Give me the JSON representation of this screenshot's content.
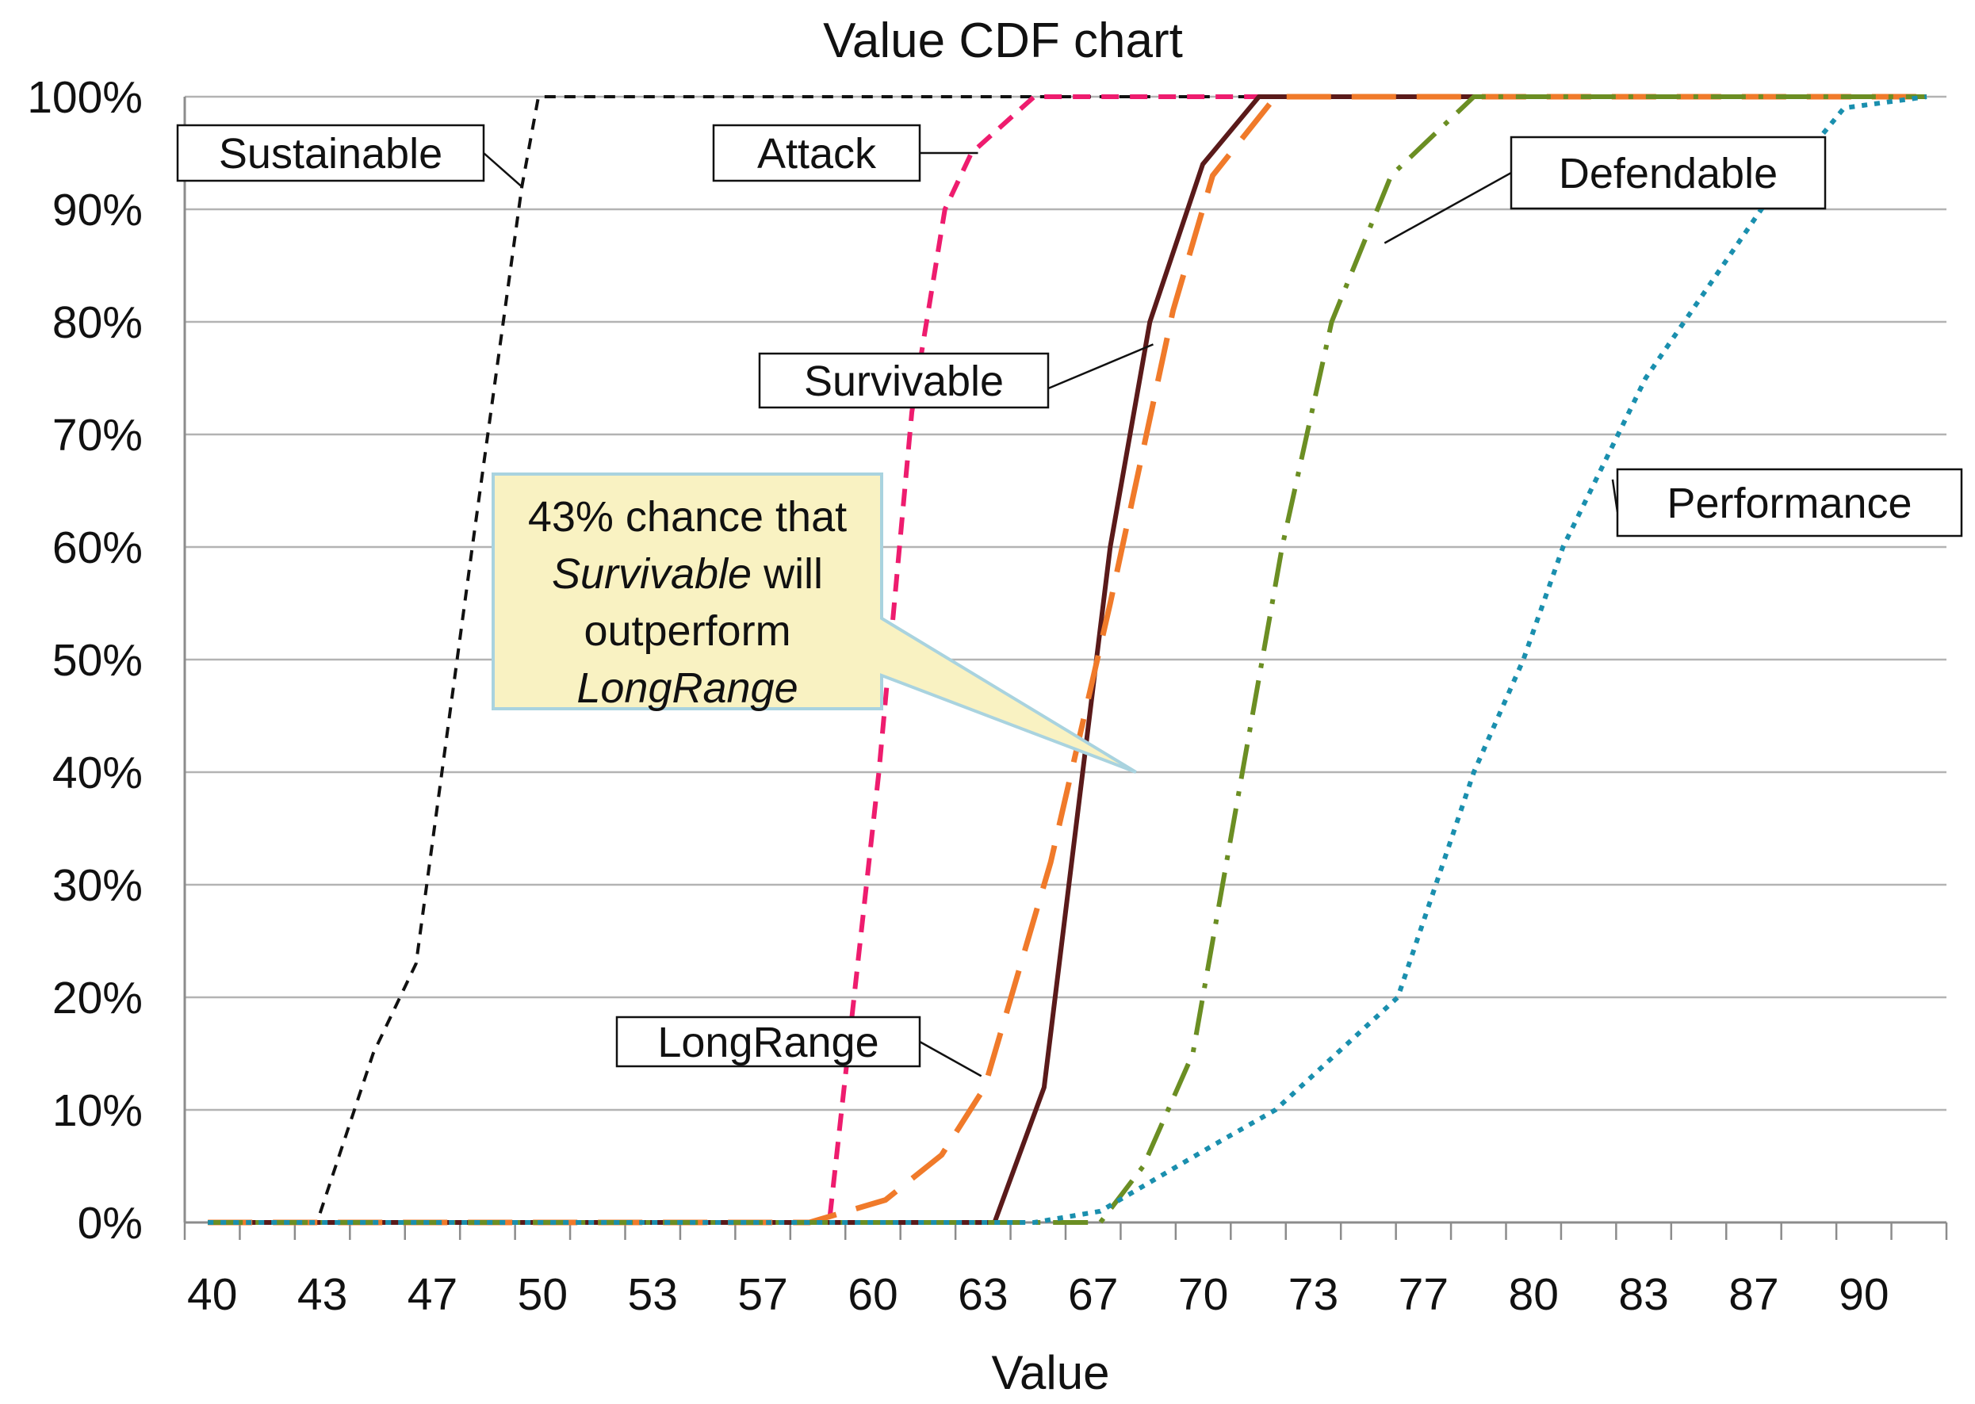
{
  "chart_data": {
    "type": "line",
    "title": "Value CDF chart",
    "xlabel": "Value",
    "ylabel": "",
    "x_tick_labels": [
      "40",
      "43",
      "47",
      "50",
      "53",
      "57",
      "60",
      "63",
      "67",
      "70",
      "73",
      "77",
      "80",
      "83",
      "87",
      "90"
    ],
    "y_tick_labels": [
      "0%",
      "10%",
      "20%",
      "30%",
      "40%",
      "50%",
      "60%",
      "70%",
      "80%",
      "90%",
      "100%"
    ],
    "xlim": [
      39.3,
      92.6
    ],
    "ylim": [
      0,
      100
    ],
    "grid": "horizontal",
    "series": [
      {
        "name": "Sustainable",
        "color": "#111111",
        "style": "dashed-short",
        "points": [
          [
            40,
            0
          ],
          [
            43.3,
            0
          ],
          [
            45,
            15
          ],
          [
            46.3,
            23
          ],
          [
            48,
            60
          ],
          [
            49.5,
            92
          ],
          [
            50,
            100
          ],
          [
            92,
            100
          ]
        ]
      },
      {
        "name": "Attack",
        "color": "#ee1c6e",
        "style": "dashed",
        "points": [
          [
            40,
            0
          ],
          [
            58.8,
            0
          ],
          [
            60.3,
            40
          ],
          [
            61.3,
            72
          ],
          [
            62.3,
            90
          ],
          [
            63.1,
            95
          ],
          [
            65,
            100
          ],
          [
            92,
            100
          ]
        ]
      },
      {
        "name": "Survivable",
        "color": "#5a1a1a",
        "style": "solid",
        "points": [
          [
            40,
            0
          ],
          [
            63.8,
            0
          ],
          [
            65.3,
            12
          ],
          [
            67.3,
            60
          ],
          [
            68.5,
            80
          ],
          [
            70.1,
            94
          ],
          [
            71.8,
            100
          ],
          [
            92,
            100
          ]
        ]
      },
      {
        "name": "LongRange",
        "color": "#f07a2a",
        "style": "long-dash",
        "points": [
          [
            40,
            0
          ],
          [
            58.2,
            0
          ],
          [
            60.5,
            2
          ],
          [
            62.2,
            6
          ],
          [
            63.5,
            12
          ],
          [
            65.5,
            32
          ],
          [
            67.3,
            55
          ],
          [
            69.2,
            81
          ],
          [
            70.4,
            93
          ],
          [
            72.3,
            100
          ],
          [
            92,
            100
          ]
        ]
      },
      {
        "name": "Defendable",
        "color": "#6b8e23",
        "style": "dash-dot",
        "points": [
          [
            40,
            0
          ],
          [
            67,
            0
          ],
          [
            68.3,
            5
          ],
          [
            69.8,
            15
          ],
          [
            71.3,
            40
          ],
          [
            72.5,
            60
          ],
          [
            74,
            80
          ],
          [
            75.8,
            93
          ],
          [
            78.3,
            100
          ],
          [
            92,
            100
          ]
        ]
      },
      {
        "name": "Performance",
        "color": "#1a8fae",
        "style": "dotted",
        "points": [
          [
            40,
            0
          ],
          [
            65,
            0
          ],
          [
            67,
            1
          ],
          [
            70.5,
            7
          ],
          [
            72.3,
            10
          ],
          [
            76,
            20
          ],
          [
            78.3,
            40
          ],
          [
            79.8,
            50
          ],
          [
            81,
            60
          ],
          [
            83.5,
            75
          ],
          [
            87,
            90
          ],
          [
            89.5,
            99
          ],
          [
            92,
            100
          ]
        ]
      }
    ],
    "series_labels": [
      {
        "text": "Sustainable",
        "anchor": [
          49.5,
          92
        ]
      },
      {
        "text": "Attack",
        "anchor": [
          63.3,
          95
        ]
      },
      {
        "text": "Survivable",
        "anchor": [
          68.6,
          78
        ]
      },
      {
        "text": "LongRange",
        "anchor": [
          63.4,
          13
        ]
      },
      {
        "text": "Defendable",
        "anchor": [
          75.6,
          87
        ]
      },
      {
        "text": "Performance",
        "anchor": [
          82.5,
          66
        ]
      }
    ],
    "annotation": {
      "line1": "43% chance that",
      "line2_italic": "Survivable",
      "line2_rest": " will",
      "line3": "outperform",
      "line4_italic": "LongRange",
      "pointer": [
        67,
        40
      ]
    }
  }
}
